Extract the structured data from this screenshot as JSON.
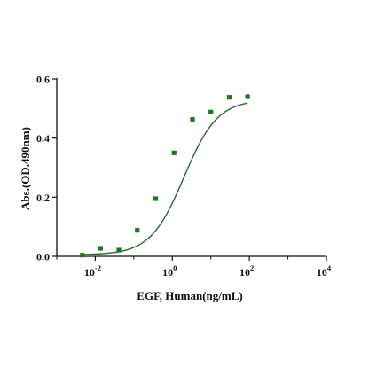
{
  "chart_data": {
    "type": "scatter",
    "xscale": "log10",
    "xlim": [
      0.001,
      10000
    ],
    "ylim": [
      0,
      0.6
    ],
    "x_ticks": [
      {
        "value": 0.01,
        "base": "10",
        "exp": "-2"
      },
      {
        "value": 1,
        "base": "10",
        "exp": "0"
      },
      {
        "value": 100,
        "base": "10",
        "exp": "2"
      },
      {
        "value": 10000,
        "base": "10",
        "exp": "4"
      }
    ],
    "y_ticks": [
      "0.0",
      "0.2",
      "0.4",
      "0.6"
    ],
    "y_tick_values": [
      0,
      0.2,
      0.4,
      0.6
    ],
    "xlabel": "EGF, Human(ng/mL)",
    "ylabel": "Abs.(OD.490nm)",
    "grid": false,
    "series": [
      {
        "marker": "square",
        "color": "#1a7a1a",
        "x": [
          0.0046,
          0.0137,
          0.041,
          0.123,
          0.37,
          1.11,
          3.33,
          10,
          30,
          90
        ],
        "y": [
          0.004,
          0.027,
          0.021,
          0.088,
          0.195,
          0.35,
          0.463,
          0.488,
          0.538,
          0.54
        ]
      }
    ],
    "fit_curve": {
      "model": "4PL",
      "bottom": 0.005,
      "top": 0.53,
      "ec50": 2.0,
      "hill": 1.0,
      "x_range": [
        0.0046,
        90
      ],
      "color": "#2a6a2a"
    }
  }
}
